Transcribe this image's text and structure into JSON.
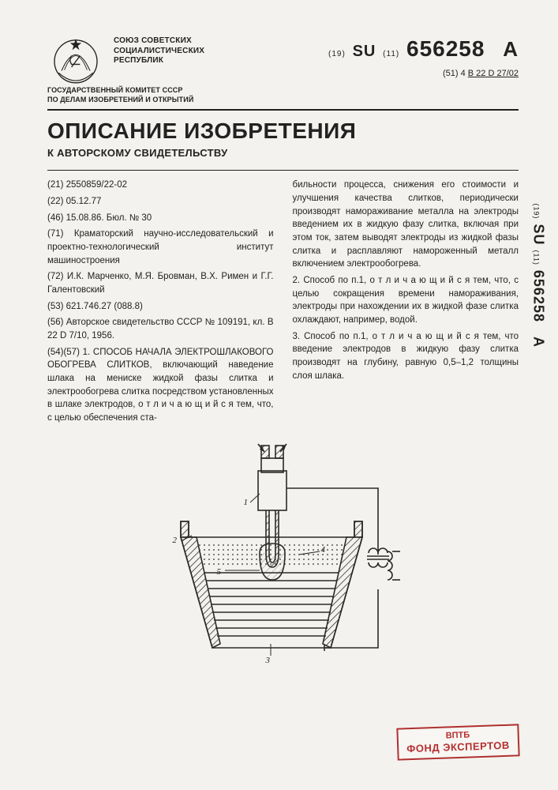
{
  "issuer": "СОЮЗ СОВЕТСКИХ\nСОЦИАЛИСТИЧЕСКИХ\nРЕСПУБЛИК",
  "committee": "ГОСУДАРСТВЕННЫЙ КОМИТЕТ СССР\nПО ДЕЛАМ ИЗОБРЕТЕНИЙ И ОТКРЫТИЙ",
  "docnum_prefix19": "(19)",
  "docnum_su": "SU",
  "docnum_prefix11": "(11)",
  "docnum": "656258",
  "docnum_suffix": "A",
  "class_prefix": "(51) 4",
  "class_code": "B 22 D 27/02",
  "main_title": "ОПИСАНИЕ ИЗОБРЕТЕНИЯ",
  "subtitle": "К АВТОРСКОМУ СВИДЕТЕЛЬСТВУ",
  "col_left": [
    "(21) 2550859/22-02",
    "(22) 05.12.77",
    "(46) 15.08.86. Бюл. № 30",
    "(71) Краматорский научно-исследовательский и проектно-технологический институт машиностроения",
    "(72) И.К. Марченко, М.Я. Бровман, В.Х. Римен и Г.Г. Галентовский",
    "(53) 621.746.27 (088.8)",
    "(56) Авторское свидетельство СССР № 109191, кл. B 22 D 7/10, 1956.",
    "",
    "(54)(57) 1. СПОСОБ НАЧАЛА ЭЛЕКТРОШЛАКОВОГО ОБОГРЕВА СЛИТКОВ, включающий наведение шлака на мениске жидкой фазы слитка и электрообогрева слитка посредством установленных в шлаке электродов, о т л и ч а ю щ и й с я тем, что, с целью обеспечения ста-"
  ],
  "col_right": [
    "бильности процесса, снижения его стоимости и улучшения качества слитков, периодически производят намораживание металла на электроды введением их в жидкую фазу слитка, включая при этом ток, затем выводят электроды из жидкой фазы слитка и расплавляют намороженный металл включением электрообогрева.",
    "2. Способ по п.1, о т л и ч а ю щ и й с я тем, что, с целью сокращения времени намораживания, электроды при нахождении их в жидкой фазе слитка охлаждают, например, водой.",
    "3. Способ по п.1, о т л и ч а ю щ и й с я тем, что введение электродов в жидкую фазу слитка производят на глубину, равную 0,5–1,2 толщины слоя шлака."
  ],
  "side_docnum": "656258",
  "stamp_line1": "ВПТБ",
  "stamp_line2": "ФОНД ЭКСПЕРТОВ",
  "figure": {
    "callouts": {
      "1": "1",
      "2": "2",
      "3": "3",
      "4": "4",
      "5": "5"
    },
    "colors": {
      "stroke": "#2a2a2a",
      "hatch": "#2a2a2a",
      "slag_fill": "#d9d6d0",
      "dots": "#2a2a2a"
    },
    "line_width": 1.6
  }
}
